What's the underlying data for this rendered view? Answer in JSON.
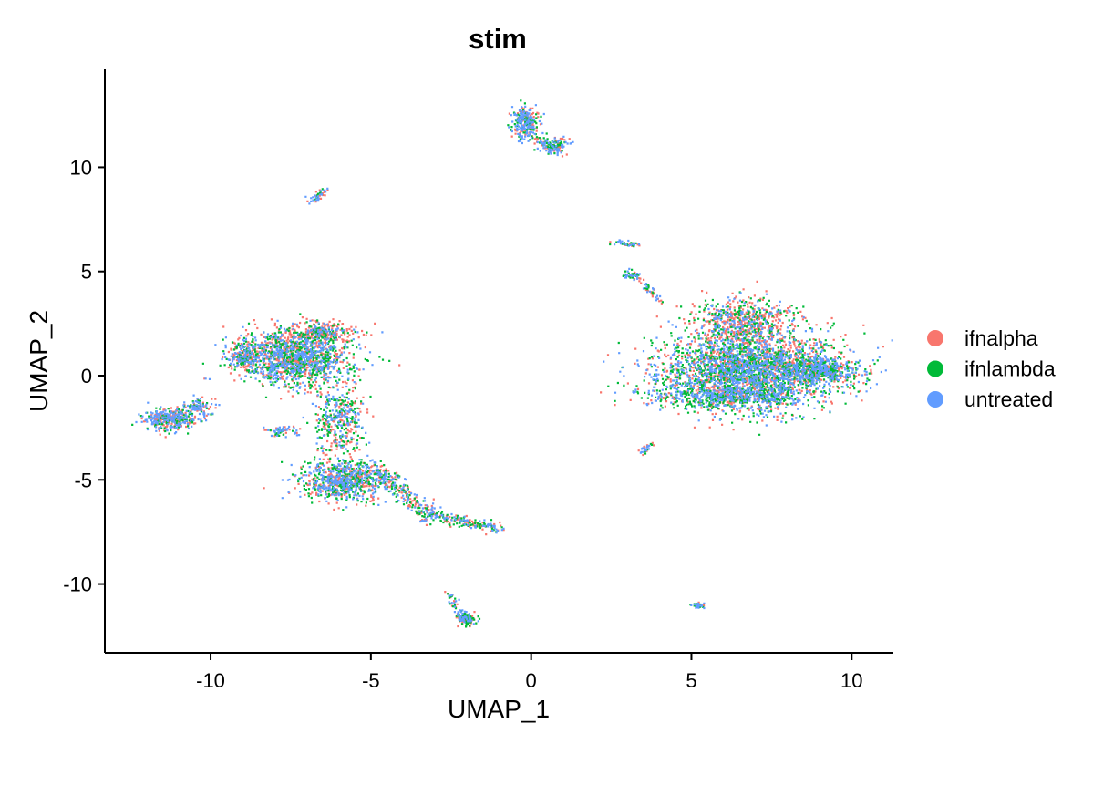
{
  "chart_data": {
    "type": "scatter",
    "title": "stim",
    "xlabel": "UMAP_1",
    "ylabel": "UMAP_2",
    "xlim": [
      -13.3,
      11.3
    ],
    "ylim": [
      -13.3,
      14.7
    ],
    "x_ticks": [
      -10,
      -5,
      0,
      5,
      10
    ],
    "y_ticks": [
      -10,
      -5,
      0,
      5,
      10
    ],
    "x_tick_labels": [
      "-10",
      "-5",
      "0",
      "5",
      "10"
    ],
    "y_tick_labels": [
      "-10",
      "-5",
      "0",
      "5",
      "10"
    ],
    "grid": false,
    "legend_placement": "right",
    "series": [
      {
        "name": "ifnalpha",
        "color": "#F8766D"
      },
      {
        "name": "ifnlambda",
        "color": "#00BA38"
      },
      {
        "name": "untreated",
        "color": "#619CFF"
      }
    ],
    "clusters": [
      {
        "center": [
          6.8,
          0.3
        ],
        "spread": [
          1.9,
          1.2
        ],
        "n": 3000,
        "weights": [
          0.33,
          0.33,
          0.34
        ]
      },
      {
        "center": [
          6.6,
          2.6
        ],
        "spread": [
          1.0,
          0.8
        ],
        "n": 700,
        "weights": [
          0.55,
          0.25,
          0.2
        ]
      },
      {
        "center": [
          9.0,
          0.3
        ],
        "spread": [
          0.8,
          0.35
        ],
        "n": 500,
        "weights": [
          0.3,
          0.35,
          0.35
        ]
      },
      {
        "center": [
          6.0,
          -1.0
        ],
        "spread": [
          1.5,
          0.35
        ],
        "n": 500,
        "weights": [
          0.2,
          0.45,
          0.35
        ]
      },
      {
        "center": [
          -7.4,
          0.9
        ],
        "spread": [
          1.15,
          0.85
        ],
        "n": 1500,
        "weights": [
          0.35,
          0.3,
          0.35
        ]
      },
      {
        "center": [
          -6.6,
          2.1
        ],
        "spread": [
          0.7,
          0.35
        ],
        "n": 300,
        "weights": [
          0.6,
          0.2,
          0.2
        ]
      },
      {
        "center": [
          -9.0,
          1.0
        ],
        "spread": [
          0.3,
          0.5
        ],
        "n": 200,
        "weights": [
          0.5,
          0.25,
          0.25
        ]
      },
      {
        "center": [
          -6.0,
          -2.0
        ],
        "spread": [
          0.5,
          1.2
        ],
        "n": 400,
        "weights": [
          0.3,
          0.35,
          0.35
        ]
      },
      {
        "center": [
          -5.9,
          -5.0
        ],
        "spread": [
          0.9,
          0.6
        ],
        "n": 800,
        "weights": [
          0.3,
          0.35,
          0.35
        ]
      },
      {
        "center": [
          -11.3,
          -2.0
        ],
        "spread": [
          0.55,
          0.35
        ],
        "n": 400,
        "weights": [
          0.35,
          0.25,
          0.4
        ]
      },
      {
        "center": [
          -10.4,
          -1.5
        ],
        "spread": [
          0.3,
          0.3
        ],
        "n": 100,
        "weights": [
          0.3,
          0.3,
          0.4
        ]
      },
      {
        "center": [
          -7.8,
          -2.6
        ],
        "spread": [
          0.35,
          0.2
        ],
        "n": 60,
        "weights": [
          0.3,
          0.3,
          0.4
        ]
      },
      {
        "center": [
          -0.2,
          12.2
        ],
        "spread": [
          0.3,
          0.5
        ],
        "n": 250,
        "weights": [
          0.2,
          0.3,
          0.5
        ]
      },
      {
        "center": [
          0.7,
          11.1
        ],
        "spread": [
          0.3,
          0.25
        ],
        "n": 120,
        "weights": [
          0.25,
          0.4,
          0.35
        ]
      },
      {
        "center": [
          -2.1,
          -11.6
        ],
        "spread": [
          0.22,
          0.2
        ],
        "n": 120,
        "weights": [
          0.25,
          0.45,
          0.3
        ]
      },
      {
        "center": [
          5.2,
          -11.0
        ],
        "spread": [
          0.12,
          0.1
        ],
        "n": 40,
        "weights": [
          0.2,
          0.3,
          0.5
        ]
      },
      {
        "center": [
          3.05,
          4.9
        ],
        "spread": [
          0.15,
          0.15
        ],
        "n": 40,
        "weights": [
          0.2,
          0.5,
          0.3
        ]
      }
    ],
    "trails": [
      {
        "from": [
          -5.0,
          -4.3
        ],
        "to": [
          -3.2,
          -6.6
        ],
        "n": 250,
        "jitter": 0.2
      },
      {
        "from": [
          -3.3,
          -6.6
        ],
        "to": [
          -1.0,
          -7.3
        ],
        "n": 200,
        "jitter": 0.15
      },
      {
        "from": [
          -6.9,
          8.4
        ],
        "to": [
          -6.4,
          9.0
        ],
        "n": 50,
        "jitter": 0.08
      },
      {
        "from": [
          2.5,
          6.5
        ],
        "to": [
          3.3,
          6.3
        ],
        "n": 40,
        "jitter": 0.06
      },
      {
        "from": [
          3.2,
          5.0
        ],
        "to": [
          4.0,
          3.6
        ],
        "n": 50,
        "jitter": 0.08
      },
      {
        "from": [
          3.4,
          -3.7
        ],
        "to": [
          3.7,
          -3.2
        ],
        "n": 30,
        "jitter": 0.06
      },
      {
        "from": [
          -2.6,
          -10.4
        ],
        "to": [
          -2.2,
          -11.5
        ],
        "n": 40,
        "jitter": 0.08
      },
      {
        "from": [
          -0.6,
          11.8
        ],
        "to": [
          1.0,
          10.7
        ],
        "n": 60,
        "jitter": 0.12
      }
    ]
  }
}
